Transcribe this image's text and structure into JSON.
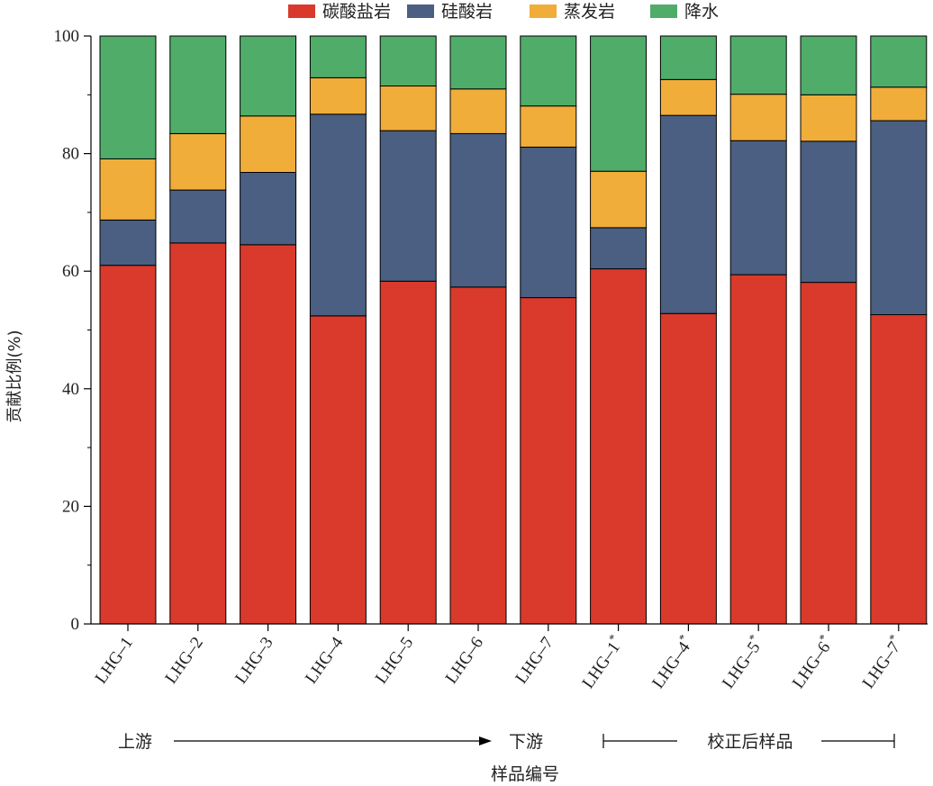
{
  "chart_data": {
    "type": "bar",
    "stacked": true,
    "xlabel": "样品编号",
    "ylabel": "贡献比例(%)",
    "ylim": [
      0,
      100
    ],
    "yticks": [
      "0",
      "20",
      "40",
      "60",
      "80",
      "100"
    ],
    "categories": [
      "LHG–1",
      "LHG–2",
      "LHG–3",
      "LHG–4",
      "LHG–5",
      "LHG–6",
      "LHG–7",
      "LHG–1",
      "LHG–4",
      "LHG–5",
      "LHG–6",
      "LHG–7"
    ],
    "category_superscripts": [
      "",
      "",
      "",
      "",
      "",
      "",
      "",
      "*",
      "*",
      "*",
      "*",
      "*"
    ],
    "series": [
      {
        "name": "碳酸盐岩",
        "color": "#d93a2b",
        "values": [
          61.0,
          64.8,
          64.5,
          52.4,
          58.3,
          57.3,
          55.5,
          60.4,
          52.8,
          59.4,
          58.1,
          52.6
        ]
      },
      {
        "name": "硅酸岩",
        "color": "#4a5f82",
        "values": [
          7.7,
          9.0,
          12.3,
          34.3,
          25.6,
          26.1,
          25.6,
          7.0,
          33.7,
          22.8,
          24.0,
          33.0
        ]
      },
      {
        "name": "蒸发岩",
        "color": "#f0ad3a",
        "values": [
          10.4,
          9.6,
          9.6,
          6.2,
          7.6,
          7.6,
          7.0,
          9.6,
          6.1,
          7.9,
          7.9,
          5.7
        ]
      },
      {
        "name": "降水",
        "color": "#4fad69",
        "values": [
          20.9,
          16.6,
          13.6,
          7.1,
          8.5,
          9.0,
          11.9,
          23.0,
          7.4,
          9.9,
          10.0,
          8.7
        ]
      }
    ],
    "legend_position": "top-center",
    "annotations": {
      "upstream": "上游",
      "downstream": "下游",
      "corrected": "校正后样品"
    }
  }
}
